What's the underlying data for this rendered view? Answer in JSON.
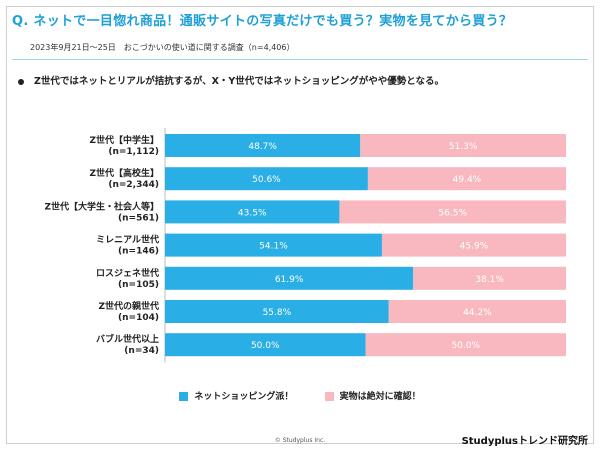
{
  "header": {
    "title": "Q. ネットで一目惚れ商品！通販サイトの写真だけでも買う？実物を見てから買う？",
    "subtitle": "2023年9月21日〜25日　おこづかいの使い道に関する調査（n=4,406）"
  },
  "summary": "Z世代ではネットとリアルが拮抗するが、X・Y世代ではネットショッピングがやや優勢となる。",
  "colors": {
    "online": "#2aaee6",
    "in_person": "#f9b8c0",
    "accent": "#1fa0d6"
  },
  "chart_data": {
    "type": "bar",
    "orientation": "horizontal",
    "stacked": true,
    "categories": [
      [
        "Z世代【中学生】",
        "(n=1,112)"
      ],
      [
        "Z世代【高校生】",
        "(n=2,344)"
      ],
      [
        "Z世代【大学生・社会人等】",
        "(n=561)"
      ],
      [
        "ミレニアル世代",
        "(n=146)"
      ],
      [
        "ロスジェネ世代",
        "(n=105)"
      ],
      [
        "Z世代の親世代",
        "(n=104)"
      ],
      [
        "バブル世代以上",
        "(n=34)"
      ]
    ],
    "series": [
      {
        "name": "ネットショッピング派！",
        "values": [
          48.7,
          50.6,
          43.5,
          54.1,
          61.9,
          55.8,
          50.0
        ],
        "labels": [
          "48.7%",
          "50.6%",
          "43.5%",
          "54.1%",
          "61.9%",
          "55.8%",
          "50.0%"
        ]
      },
      {
        "name": "実物は絶対に確認！",
        "values": [
          51.3,
          49.4,
          56.5,
          45.9,
          38.1,
          44.2,
          50.0
        ],
        "labels": [
          "51.3%",
          "49.4%",
          "56.5%",
          "45.9%",
          "38.1%",
          "44.2%",
          "50.0%"
        ]
      }
    ],
    "xlim": [
      0,
      100
    ],
    "legend": "bottom"
  },
  "footer": {
    "copyright": "© Studyplus Inc.",
    "brand": "Studyplusトレンド研究所"
  }
}
